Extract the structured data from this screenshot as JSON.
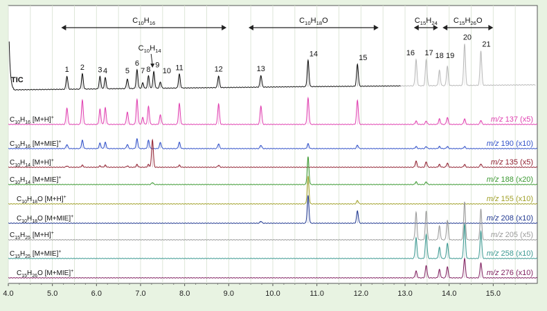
{
  "chart_data": {
    "type": "line",
    "title": "",
    "xlabel": "",
    "ylabel": "",
    "xlim": [
      4.0,
      16.0
    ],
    "x_ticks": [
      "4.0",
      "5.0",
      "6.0",
      "7.0",
      "8.0",
      "9.0",
      "10.0",
      "11.0",
      "12.0",
      "13.0",
      "14.0",
      "15.0"
    ],
    "grid": true,
    "peak_labels": [
      {
        "n": "1",
        "t": 5.33
      },
      {
        "n": "2",
        "t": 5.68
      },
      {
        "n": "3",
        "t": 6.08
      },
      {
        "n": "4",
        "t": 6.2
      },
      {
        "n": "5",
        "t": 6.7
      },
      {
        "n": "6",
        "t": 6.92
      },
      {
        "n": "7",
        "t": 7.05
      },
      {
        "n": "8",
        "t": 7.18
      },
      {
        "n": "9",
        "t": 7.32
      },
      {
        "n": "10",
        "t": 7.47
      },
      {
        "n": "11",
        "t": 7.88
      },
      {
        "n": "12",
        "t": 8.77
      },
      {
        "n": "13",
        "t": 9.73
      },
      {
        "n": "14",
        "t": 10.8
      },
      {
        "n": "15",
        "t": 11.92
      },
      {
        "n": "16",
        "t": 13.25
      },
      {
        "n": "17",
        "t": 13.48
      },
      {
        "n": "18",
        "t": 13.78
      },
      {
        "n": "19",
        "t": 13.96
      },
      {
        "n": "20",
        "t": 14.35
      },
      {
        "n": "21",
        "t": 14.72
      }
    ],
    "class_ranges": [
      {
        "base": "C",
        "s1": "10",
        "mid": "H",
        "s2": "16",
        "tail": "",
        "start": 5.2,
        "end": 8.95
      },
      {
        "base": "C",
        "s1": "10",
        "mid": "H",
        "s2": "18",
        "tail": "O",
        "start": 9.45,
        "end": 12.4
      },
      {
        "base": "C",
        "s1": "15",
        "mid": "H",
        "s2": "24",
        "tail": "",
        "start": 13.2,
        "end": 13.75
      },
      {
        "base": "C",
        "s1": "15",
        "mid": "H",
        "s2": "26",
        "tail": "O",
        "start": 13.85,
        "end": 15.0
      }
    ],
    "annotation": {
      "base": "C",
      "s1": "10",
      "mid": "H",
      "s2": "14",
      "tail": "",
      "t": 7.27
    },
    "series": [
      {
        "id": "tic",
        "label_plain": "TIC",
        "mz": "",
        "mult": "",
        "color": "#111111",
        "peaks": [
          [
            5.33,
            19
          ],
          [
            5.68,
            22
          ],
          [
            6.08,
            18
          ],
          [
            6.2,
            16
          ],
          [
            6.7,
            14
          ],
          [
            6.92,
            27
          ],
          [
            7.05,
            8
          ],
          [
            7.18,
            18
          ],
          [
            7.3,
            24
          ],
          [
            7.45,
            9
          ],
          [
            7.88,
            20
          ],
          [
            8.77,
            17
          ],
          [
            9.73,
            17
          ],
          [
            10.8,
            38
          ],
          [
            11.92,
            32
          ]
        ]
      },
      {
        "id": "tic_late",
        "label_plain": "",
        "mz": "",
        "mult": "",
        "color": "#b9b9b9",
        "peaks": [
          [
            13.25,
            38
          ],
          [
            13.48,
            38
          ],
          [
            13.78,
            22
          ],
          [
            13.96,
            28
          ],
          [
            14.35,
            60
          ],
          [
            14.72,
            50
          ]
        ]
      },
      {
        "id": "c10h16_mh",
        "label": {
          "base": "C",
          "s1": "10",
          "mid": "H",
          "s2": "16",
          "tail": " [M+H]",
          "sup": "+"
        },
        "mz": "137",
        "mult": "(x5)",
        "color": "#e040b0",
        "peaks": [
          [
            5.33,
            24
          ],
          [
            5.68,
            35
          ],
          [
            6.08,
            22
          ],
          [
            6.2,
            24
          ],
          [
            6.7,
            18
          ],
          [
            6.92,
            36
          ],
          [
            7.05,
            10
          ],
          [
            7.18,
            26
          ],
          [
            7.45,
            14
          ],
          [
            7.88,
            30
          ],
          [
            8.77,
            30
          ],
          [
            9.73,
            27
          ],
          [
            10.8,
            38
          ],
          [
            11.92,
            35
          ],
          [
            13.25,
            5
          ],
          [
            13.48,
            5
          ],
          [
            13.78,
            8
          ],
          [
            13.96,
            10
          ],
          [
            14.35,
            8
          ],
          [
            14.72,
            6
          ]
        ]
      },
      {
        "id": "c10h16_mie",
        "label": {
          "base": "C",
          "s1": "10",
          "mid": "H",
          "s2": "16",
          "tail": " [M+MIE]",
          "sup": "+"
        },
        "mz": "190",
        "mult": "(x10)",
        "color": "#3050c8",
        "peaks": [
          [
            5.33,
            6
          ],
          [
            5.68,
            12
          ],
          [
            6.08,
            8
          ],
          [
            6.2,
            9
          ],
          [
            6.7,
            6
          ],
          [
            6.92,
            14
          ],
          [
            7.18,
            12
          ],
          [
            7.45,
            9
          ],
          [
            7.88,
            9
          ],
          [
            8.77,
            7
          ],
          [
            9.73,
            5
          ],
          [
            10.8,
            7
          ],
          [
            11.92,
            5
          ],
          [
            13.25,
            3
          ],
          [
            13.48,
            3
          ],
          [
            13.78,
            3
          ],
          [
            13.96,
            3
          ],
          [
            14.35,
            3
          ]
        ]
      },
      {
        "id": "c10h14_mh",
        "label": {
          "base": "C",
          "s1": "10",
          "mid": "H",
          "s2": "14",
          "tail": " [M+H]",
          "sup": "+"
        },
        "mz": "135",
        "mult": "(x5)",
        "color": "#902030",
        "peaks": [
          [
            5.33,
            2
          ],
          [
            5.68,
            3
          ],
          [
            6.08,
            2
          ],
          [
            6.2,
            3
          ],
          [
            6.7,
            2
          ],
          [
            6.92,
            4
          ],
          [
            7.18,
            4
          ],
          [
            7.27,
            40
          ],
          [
            7.88,
            3
          ],
          [
            8.77,
            3
          ],
          [
            13.25,
            9
          ],
          [
            13.48,
            8
          ],
          [
            13.78,
            4
          ],
          [
            13.96,
            6
          ],
          [
            14.35,
            4
          ],
          [
            14.72,
            5
          ]
        ]
      },
      {
        "id": "c10h14_mie",
        "label": {
          "base": "C",
          "s1": "10",
          "mid": "H",
          "s2": "14",
          "tail": " [M+MIE]",
          "sup": "+"
        },
        "mz": "188",
        "mult": "(x20)",
        "color": "#3a9830",
        "peaks": [
          [
            7.27,
            3
          ],
          [
            10.8,
            40
          ],
          [
            13.25,
            4
          ],
          [
            13.48,
            4
          ]
        ]
      },
      {
        "id": "c10h18o_mh",
        "label": {
          "base": "C",
          "s1": "10",
          "mid": "H",
          "s2": "18",
          "tail": "O [M+H]",
          "sup": "+"
        },
        "mz": "155",
        "mult": "(x10)",
        "color": "#a0a028",
        "peaks": [
          [
            10.8,
            40
          ],
          [
            11.92,
            5
          ]
        ]
      },
      {
        "id": "c10h18o_mie",
        "label": {
          "base": "C",
          "s1": "10",
          "mid": "H",
          "s2": "18",
          "tail": "O [M+MIE]",
          "sup": "+"
        },
        "mz": "208",
        "mult": "(x10)",
        "color": "#203890",
        "peaks": [
          [
            9.73,
            3
          ],
          [
            10.8,
            40
          ],
          [
            11.92,
            18
          ]
        ]
      },
      {
        "id": "c15h25_mh",
        "label": {
          "base": "C",
          "s1": "15",
          "mid": "H",
          "s2": "25",
          "tail": " [M+H]",
          "sup": "+"
        },
        "mz": "205",
        "mult": "(x5)",
        "color": "#9a9a9a",
        "peaks": [
          [
            13.25,
            40
          ],
          [
            13.48,
            42
          ],
          [
            13.78,
            20
          ],
          [
            13.96,
            28
          ],
          [
            14.35,
            55
          ],
          [
            14.72,
            45
          ]
        ]
      },
      {
        "id": "c15h25_mie",
        "label": {
          "base": "C",
          "s1": "15",
          "mid": "H",
          "s2": "25",
          "tail": " [M+MIE]",
          "sup": "+"
        },
        "mz": "258",
        "mult": "(x10)",
        "color": "#3a9890",
        "peaks": [
          [
            13.25,
            30
          ],
          [
            13.48,
            35
          ],
          [
            13.78,
            16
          ],
          [
            13.96,
            22
          ],
          [
            14.35,
            50
          ],
          [
            14.72,
            40
          ]
        ]
      },
      {
        "id": "c15h26o_mie",
        "label": {
          "base": "C",
          "s1": "15",
          "mid": "H",
          "s2": "26",
          "tail": "O [M+MIE]",
          "sup": "+"
        },
        "mz": "276",
        "mult": "(x10)",
        "color": "#802060",
        "peaks": [
          [
            13.25,
            10
          ],
          [
            13.48,
            18
          ],
          [
            13.78,
            12
          ],
          [
            13.96,
            16
          ],
          [
            14.35,
            28
          ],
          [
            14.72,
            22
          ]
        ]
      }
    ]
  }
}
